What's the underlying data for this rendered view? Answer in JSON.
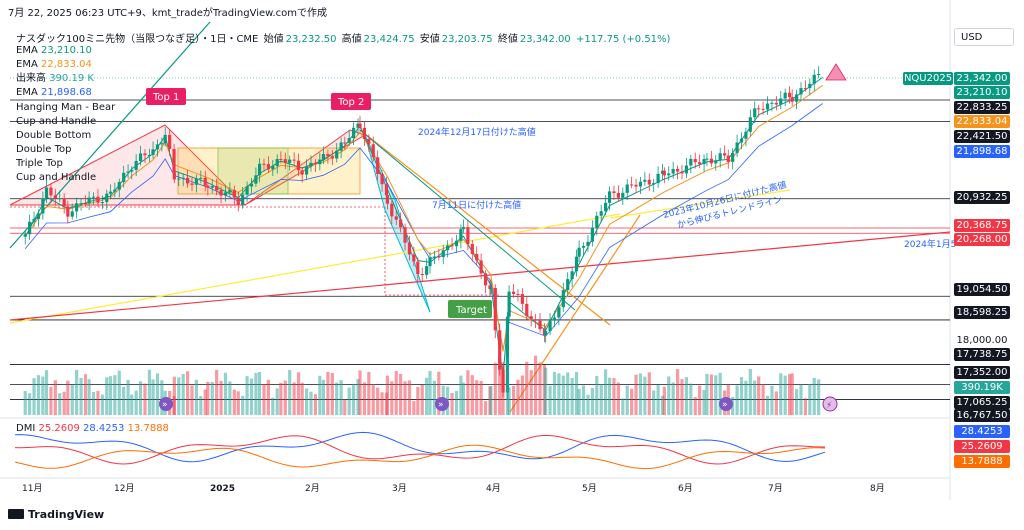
{
  "header": {
    "timestamp_line": "7月 22, 2025 06:23 UTC+9、kmt_tradeがTradingView.comで作成",
    "currency_button": "USD"
  },
  "symbol_info": {
    "name": "ナスダック100ミニ先物（当限つなぎ足）・1日・CME",
    "open_label": "始値",
    "open": "23,232.50",
    "high_label": "高値",
    "high": "23,424.75",
    "low_label": "安値",
    "low": "23,203.75",
    "close_label": "終値",
    "close": "23,342.00",
    "change": "+117.75 (+0.51%)"
  },
  "indicators": [
    {
      "label": "EMA",
      "value": "23,210.10",
      "color": "#089981"
    },
    {
      "label": "EMA",
      "value": "22,833.04",
      "color": "#f7931a"
    },
    {
      "label": "出来高",
      "value": "390.19 K",
      "color": "#26a69a"
    },
    {
      "label": "EMA",
      "value": "21,898.68",
      "color": "#2962ff"
    }
  ],
  "patterns": [
    "Hanging Man - Bear",
    "Cup and Handle",
    "Double Bottom",
    "Double Top",
    "Triple Top",
    "Cup and Handle"
  ],
  "dmi": {
    "label": "DMI",
    "plus": "25.2609",
    "minus": "28.4253",
    "adx": "13.7888"
  },
  "annotations": {
    "top1": "Top 1",
    "top2": "Top 2",
    "target": "Target",
    "high_2024_dec17": "2024年12月17日付けた高値",
    "high_jul11": "7月11日に付けた高値",
    "trendline_2023": "2023年10月26日に付けた高値\nから伸びるトレンドライン",
    "jan5_2024": "2024年1月5"
  },
  "price_scale": {
    "symbol_tag": "NQU2025",
    "levels": [
      {
        "value": "23,342.00",
        "bg": "#089981",
        "fg": "#ffffff"
      },
      {
        "value": "23,210.10",
        "bg": "#089981",
        "fg": "#ffffff"
      },
      {
        "value": "22,833.25",
        "bg": "#131722",
        "fg": "#ffffff"
      },
      {
        "value": "22,833.04",
        "bg": "#f7931a",
        "fg": "#ffffff"
      },
      {
        "value": "22,421.50",
        "bg": "#131722",
        "fg": "#ffffff"
      },
      {
        "value": "21,898.68",
        "bg": "#2962ff",
        "fg": "#ffffff"
      },
      {
        "value": "20,932.25",
        "bg": "#131722",
        "fg": "#ffffff"
      },
      {
        "value": "20,368.75",
        "bg": "#f23645",
        "fg": "#ffffff"
      },
      {
        "value": "20,268.00",
        "bg": "#f23645",
        "fg": "#ffffff"
      },
      {
        "value": "19,054.50",
        "bg": "#131722",
        "fg": "#ffffff"
      },
      {
        "value": "18,598.25",
        "bg": "#131722",
        "fg": "#ffffff"
      },
      {
        "value": "18,000.00",
        "bg": "transparent",
        "fg": "#131722"
      },
      {
        "value": "17,738.75",
        "bg": "#131722",
        "fg": "#ffffff"
      },
      {
        "value": "17,352.00",
        "bg": "#131722",
        "fg": "#ffffff"
      },
      {
        "value": "390.19K",
        "bg": "#26a69a",
        "fg": "#ffffff"
      },
      {
        "value": "17,065.25",
        "bg": "#131722",
        "fg": "#ffffff"
      },
      {
        "value": "16,767.50",
        "bg": "#131722",
        "fg": "#ffffff"
      }
    ],
    "dmi_levels": [
      {
        "value": "28.4253",
        "bg": "#2962ff",
        "fg": "#ffffff"
      },
      {
        "value": "25.2609",
        "bg": "#f23645",
        "fg": "#ffffff"
      },
      {
        "value": "13.7888",
        "bg": "#ff6d00",
        "fg": "#ffffff"
      }
    ]
  },
  "x_axis_labels": [
    "11月",
    "12月",
    "2025",
    "2月",
    "3月",
    "4月",
    "5月",
    "6月",
    "7月",
    "8月"
  ],
  "footer": {
    "brand": "TradingView"
  },
  "chart_data": {
    "type": "candlestick",
    "y_range": [
      16767.5,
      23700
    ],
    "horizontal_levels": [
      22833.25,
      22421.5,
      20932.25,
      20368.75,
      20268.0,
      19054.5,
      18598.25,
      17738.75,
      17352.0,
      17065.25
    ],
    "close_path": [
      {
        "x": "2024-11-01",
        "y": 20200
      },
      {
        "x": "2024-11-08",
        "y": 21100
      },
      {
        "x": "2024-11-15",
        "y": 20700
      },
      {
        "x": "2024-11-22",
        "y": 20900
      },
      {
        "x": "2024-11-29",
        "y": 21000
      },
      {
        "x": "2024-12-06",
        "y": 21600
      },
      {
        "x": "2024-12-13",
        "y": 21850
      },
      {
        "x": "2024-12-17",
        "y": 22200
      },
      {
        "x": "2024-12-20",
        "y": 21350
      },
      {
        "x": "2024-12-31",
        "y": 21200
      },
      {
        "x": "2025-01-10",
        "y": 20900
      },
      {
        "x": "2025-01-17",
        "y": 21500
      },
      {
        "x": "2025-01-24",
        "y": 21700
      },
      {
        "x": "2025-01-31",
        "y": 21500
      },
      {
        "x": "2025-02-07",
        "y": 21700
      },
      {
        "x": "2025-02-14",
        "y": 22000
      },
      {
        "x": "2025-02-19",
        "y": 22400
      },
      {
        "x": "2025-02-28",
        "y": 20900
      },
      {
        "x": "2025-03-10",
        "y": 19500
      },
      {
        "x": "2025-03-14",
        "y": 19700
      },
      {
        "x": "2025-03-25",
        "y": 20300
      },
      {
        "x": "2025-04-03",
        "y": 19100
      },
      {
        "x": "2025-04-07",
        "y": 17200
      },
      {
        "x": "2025-04-09",
        "y": 19200
      },
      {
        "x": "2025-04-21",
        "y": 18300
      },
      {
        "x": "2025-05-02",
        "y": 19900
      },
      {
        "x": "2025-05-12",
        "y": 21000
      },
      {
        "x": "2025-05-30",
        "y": 21400
      },
      {
        "x": "2025-06-13",
        "y": 21700
      },
      {
        "x": "2025-06-20",
        "y": 21700
      },
      {
        "x": "2025-06-30",
        "y": 22700
      },
      {
        "x": "2025-07-11",
        "y": 22900
      },
      {
        "x": "2025-07-21",
        "y": 23342
      }
    ],
    "ema_fast_last": 23210.1,
    "ema_mid_last": 22833.04,
    "ema_slow_last": 21898.68,
    "volume_last": "390.19K",
    "dmi_last": {
      "plus": 25.2609,
      "minus": 28.4253,
      "adx": 13.7888
    }
  }
}
